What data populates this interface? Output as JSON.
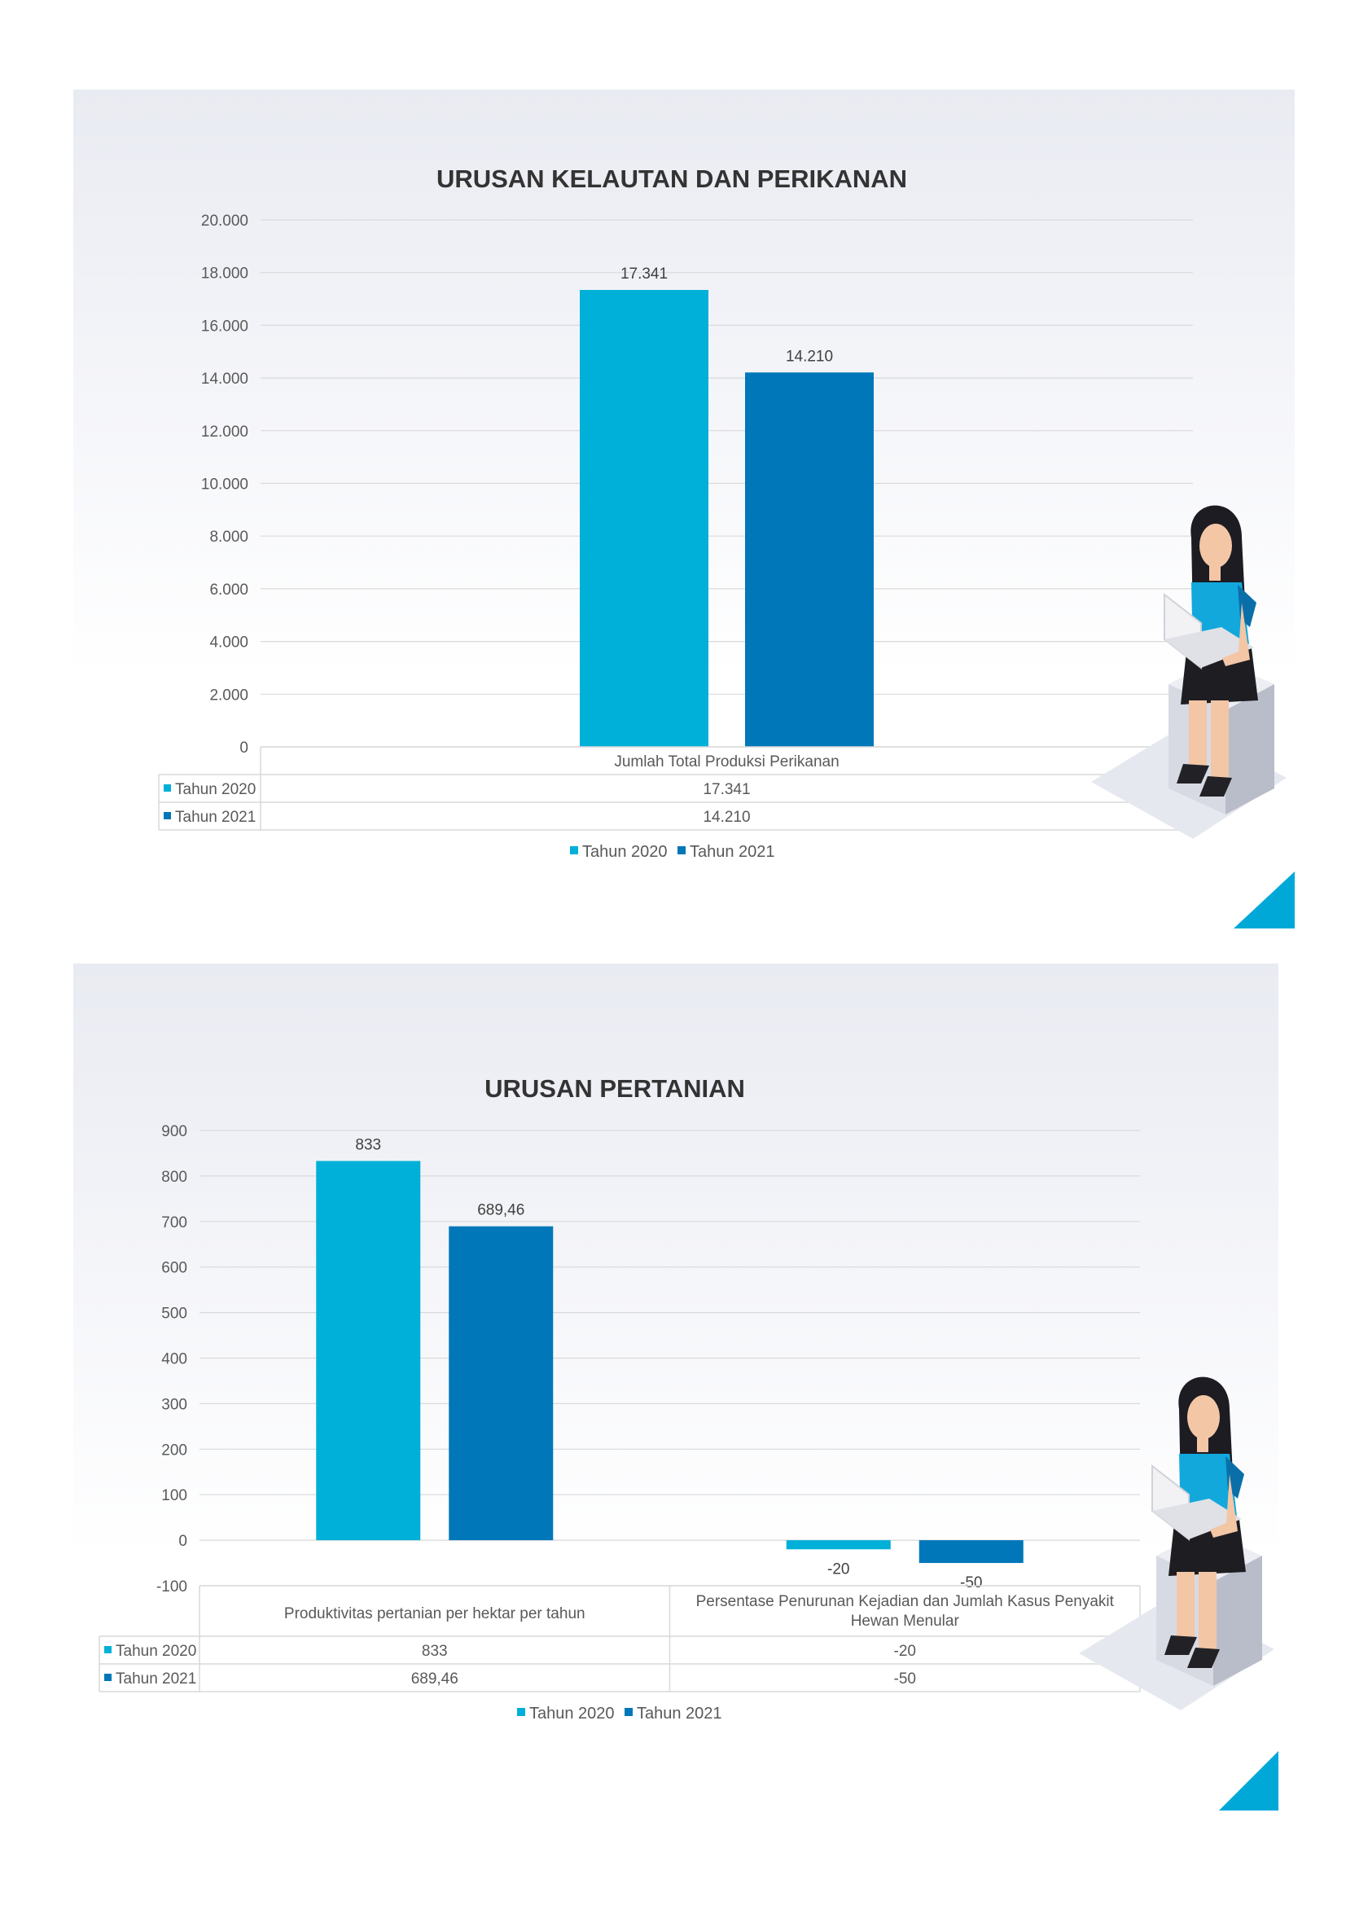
{
  "colors": {
    "tahun_2020": "#00b0d8",
    "tahun_2021": "#0077b8",
    "grid": "#d9d9d9",
    "accent": "#00a8d8"
  },
  "illustration": "woman-with-laptop-sitting-on-box",
  "chart_data": [
    {
      "type": "bar",
      "title": "URUSAN KELAUTAN DAN PERIKANAN",
      "categories": [
        "Jumlah Total Produksi Perikanan"
      ],
      "series": [
        {
          "name": "Tahun 2020",
          "values": [
            17341
          ],
          "labels": [
            "17.341"
          ]
        },
        {
          "name": "Tahun 2021",
          "values": [
            14210
          ],
          "labels": [
            "14.210"
          ]
        }
      ],
      "ylim": [
        0,
        20000
      ],
      "yticks": [
        "0",
        "2.000",
        "4.000",
        "6.000",
        "8.000",
        "10.000",
        "12.000",
        "14.000",
        "16.000",
        "18.000",
        "20.000"
      ],
      "grid": true,
      "data_table": true,
      "legend": "bottom"
    },
    {
      "type": "bar",
      "title": "URUSAN PERTANIAN",
      "categories": [
        "Produktivitas pertanian per hektar per tahun",
        "Persentase Penurunan Kejadian dan Jumlah Kasus Penyakit Hewan Menular"
      ],
      "category_lines": [
        [
          "Produktivitas pertanian per hektar per tahun"
        ],
        [
          "Persentase Penurunan Kejadian dan Jumlah Kasus Penyakit",
          "Hewan Menular"
        ]
      ],
      "series": [
        {
          "name": "Tahun 2020",
          "values": [
            833,
            -20
          ],
          "labels": [
            "833",
            "-20"
          ]
        },
        {
          "name": "Tahun 2021",
          "values": [
            689.46,
            -50
          ],
          "labels": [
            "689,46",
            "-50"
          ]
        }
      ],
      "ylim": [
        -100,
        900
      ],
      "yticks": [
        "-100",
        "0",
        "100",
        "200",
        "300",
        "400",
        "500",
        "600",
        "700",
        "800",
        "900"
      ],
      "grid": true,
      "data_table": true,
      "legend": "bottom"
    }
  ]
}
